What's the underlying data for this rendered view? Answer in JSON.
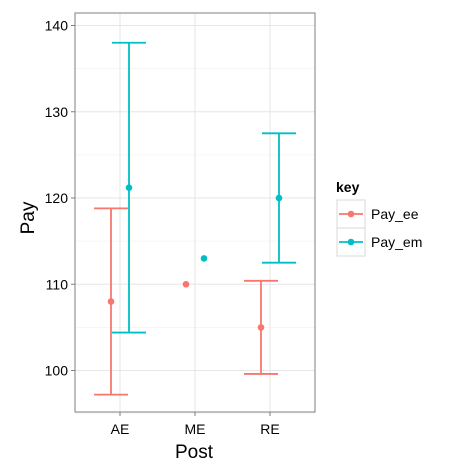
{
  "chart_data": {
    "type": "errorbar",
    "title": "",
    "xlabel": "Post",
    "ylabel": "Pay",
    "categories": [
      "AE",
      "ME",
      "RE"
    ],
    "ylim": [
      95,
      140
    ],
    "yticks": [
      100,
      110,
      120,
      130,
      140
    ],
    "grid": true,
    "legend": {
      "title": "key",
      "position": "right"
    },
    "series": [
      {
        "name": "Pay_ee",
        "color": "#F8766D",
        "points": [
          {
            "x": "AE",
            "y": 108.0,
            "lower": 97.2,
            "upper": 118.8
          },
          {
            "x": "ME",
            "y": 110.0,
            "lower": null,
            "upper": null
          },
          {
            "x": "RE",
            "y": 105.0,
            "lower": 99.6,
            "upper": 110.4
          }
        ]
      },
      {
        "name": "Pay_em",
        "color": "#00BFC4",
        "points": [
          {
            "x": "AE",
            "y": 121.2,
            "lower": 104.4,
            "upper": 138.0
          },
          {
            "x": "ME",
            "y": 113.0,
            "lower": null,
            "upper": null
          },
          {
            "x": "RE",
            "y": 120.0,
            "lower": 112.5,
            "upper": 127.5
          }
        ]
      }
    ]
  }
}
